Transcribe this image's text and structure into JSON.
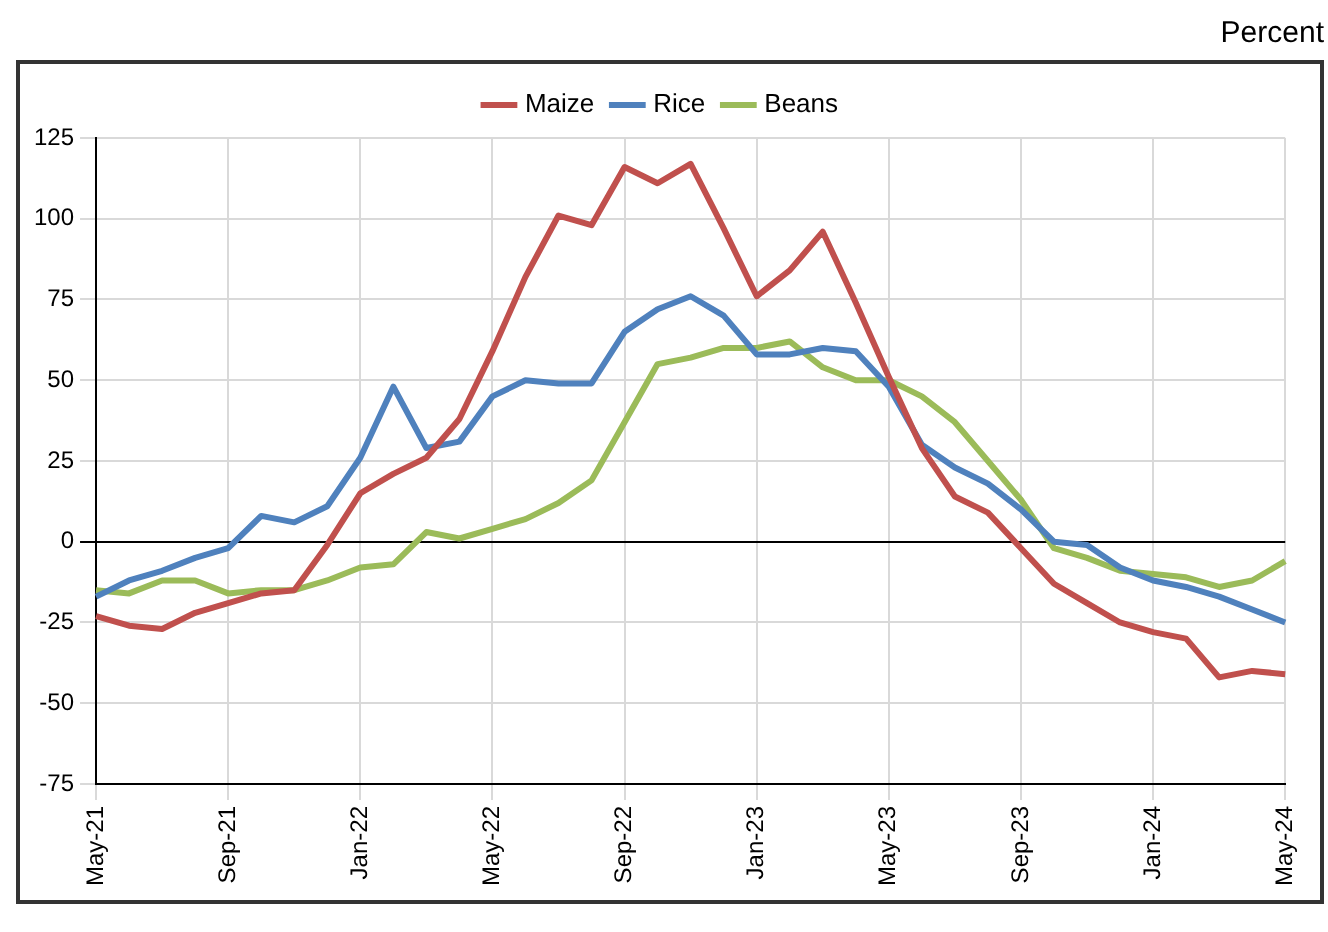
{
  "chart_data": {
    "type": "line",
    "ylabel": "Percent",
    "categories": [
      "May-21",
      null,
      null,
      null,
      "Sep-21",
      null,
      null,
      null,
      "Jan-22",
      null,
      null,
      null,
      "May-22",
      null,
      null,
      null,
      "Sep-22",
      null,
      null,
      null,
      "Jan-23",
      null,
      null,
      null,
      "May-23",
      null,
      null,
      null,
      "Sep-23",
      null,
      null,
      null,
      "Jan-24",
      null,
      null,
      null,
      "May-24"
    ],
    "series": [
      {
        "name": "Maize",
        "color": "#c0504d",
        "values": [
          -23,
          -26,
          -27,
          -22,
          -19,
          -16,
          -15,
          -1,
          15,
          21,
          26,
          38,
          59,
          82,
          101,
          98,
          116,
          111,
          117,
          97,
          76,
          84,
          96,
          74,
          51,
          29,
          14,
          9,
          -2,
          -13,
          -19,
          -25,
          -28,
          -30,
          -42,
          -40,
          -41
        ]
      },
      {
        "name": "Rice",
        "color": "#4f81bd",
        "values": [
          -17,
          -12,
          -9,
          -5,
          -2,
          8,
          6,
          11,
          26,
          48,
          29,
          31,
          45,
          50,
          49,
          49,
          65,
          72,
          76,
          70,
          58,
          58,
          60,
          59,
          48,
          30,
          23,
          18,
          10,
          0,
          -1,
          -8,
          -12,
          -14,
          -17,
          -21,
          -25
        ]
      },
      {
        "name": "Beans",
        "color": "#9bbb59",
        "values": [
          -15,
          -16,
          -12,
          -12,
          -16,
          -15,
          -15,
          -12,
          -8,
          -7,
          3,
          1,
          4,
          7,
          12,
          19,
          37,
          55,
          57,
          60,
          60,
          62,
          54,
          50,
          50,
          45,
          37,
          25,
          13,
          -2,
          -5,
          -9,
          -10,
          -11,
          -14,
          -12,
          -6
        ]
      }
    ],
    "ylim": [
      -75,
      125
    ],
    "yticks": [
      -75,
      -50,
      -25,
      0,
      25,
      50,
      75,
      100,
      125
    ],
    "grid": true,
    "legend": "top"
  }
}
